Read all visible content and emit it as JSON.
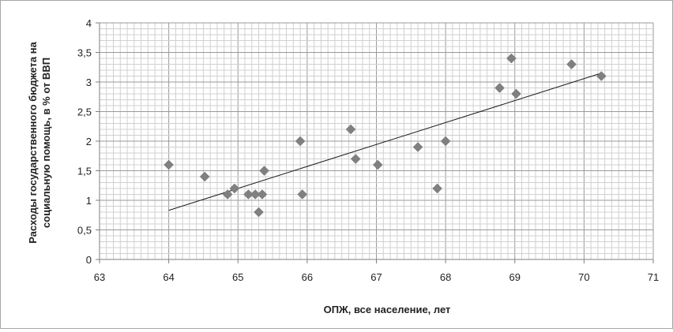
{
  "chart_data": {
    "type": "scatter",
    "title": "",
    "xlabel": "ОПЖ, все население, лет",
    "ylabel_line1": "Расходы государственного бюджета на",
    "ylabel_line2": "социальную помощь, в % от ВВП",
    "xlim": [
      63,
      71
    ],
    "ylim": [
      0,
      4
    ],
    "x_ticks": [
      "63",
      "64",
      "65",
      "66",
      "67",
      "68",
      "69",
      "70",
      "71"
    ],
    "y_ticks": [
      "0",
      "0,5",
      "1",
      "1,5",
      "2",
      "2,5",
      "3",
      "3,5",
      "4"
    ],
    "grid": true,
    "marker": "diamond",
    "marker_color": "#808080",
    "points": [
      {
        "x": 64.0,
        "y": 1.6
      },
      {
        "x": 64.52,
        "y": 1.4
      },
      {
        "x": 64.85,
        "y": 1.1
      },
      {
        "x": 64.95,
        "y": 1.2
      },
      {
        "x": 65.15,
        "y": 1.1
      },
      {
        "x": 65.25,
        "y": 1.1
      },
      {
        "x": 65.3,
        "y": 0.8
      },
      {
        "x": 65.35,
        "y": 1.1
      },
      {
        "x": 65.38,
        "y": 1.5
      },
      {
        "x": 65.9,
        "y": 2.0
      },
      {
        "x": 65.93,
        "y": 1.1
      },
      {
        "x": 66.63,
        "y": 2.2
      },
      {
        "x": 66.7,
        "y": 1.7
      },
      {
        "x": 67.02,
        "y": 1.6
      },
      {
        "x": 67.6,
        "y": 1.9
      },
      {
        "x": 67.88,
        "y": 1.2
      },
      {
        "x": 68.0,
        "y": 2.0
      },
      {
        "x": 68.78,
        "y": 2.9
      },
      {
        "x": 68.95,
        "y": 3.4
      },
      {
        "x": 69.02,
        "y": 2.8
      },
      {
        "x": 69.82,
        "y": 3.3
      },
      {
        "x": 70.25,
        "y": 3.1
      }
    ],
    "trendline": {
      "type": "linear",
      "from": {
        "x": 64.0,
        "y": 0.83
      },
      "to": {
        "x": 70.25,
        "y": 3.15
      }
    }
  }
}
